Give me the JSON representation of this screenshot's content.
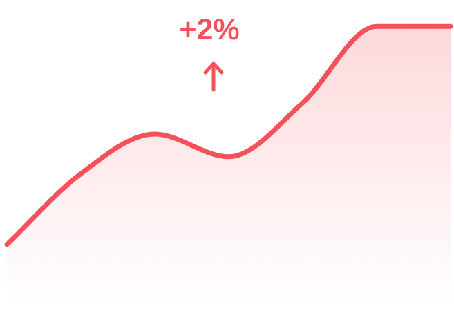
{
  "chart_data": {
    "type": "area",
    "title": "",
    "xlabel": "",
    "ylabel": "",
    "grid": false,
    "legend": "none",
    "x": [
      0,
      1,
      2,
      3,
      4,
      5,
      6
    ],
    "ylim": [
      0,
      10
    ],
    "series": [
      {
        "values": [
          2.1,
          4.6,
          6.0,
          5.2,
          7.1,
          9.8,
          9.8
        ]
      }
    ],
    "annotation": {
      "text": "+2%",
      "icon": "arrow-up-icon"
    }
  },
  "colors": {
    "line": "#f4515a",
    "fill": "#f4515a",
    "text": "#f4515a",
    "background": "#ffffff"
  }
}
